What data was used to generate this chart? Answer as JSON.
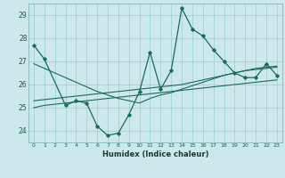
{
  "xlabel": "Humidex (Indice chaleur)",
  "x_values": [
    0,
    1,
    2,
    3,
    4,
    5,
    6,
    7,
    8,
    9,
    10,
    11,
    12,
    13,
    14,
    15,
    16,
    17,
    18,
    19,
    20,
    21,
    22,
    23
  ],
  "y_main": [
    27.7,
    27.1,
    null,
    25.1,
    25.3,
    25.2,
    24.2,
    23.8,
    23.9,
    24.7,
    25.7,
    27.4,
    25.8,
    26.6,
    29.3,
    28.4,
    28.1,
    27.5,
    27.0,
    26.5,
    26.3,
    26.3,
    26.9,
    26.4
  ],
  "y_line1": [
    25.0,
    25.1,
    25.15,
    25.2,
    25.25,
    25.3,
    25.35,
    25.4,
    25.45,
    25.5,
    25.55,
    25.6,
    25.65,
    25.7,
    25.75,
    25.8,
    25.85,
    25.9,
    25.95,
    26.0,
    26.05,
    26.1,
    26.15,
    26.2
  ],
  "y_line2": [
    25.3,
    25.35,
    25.4,
    25.45,
    25.5,
    25.55,
    25.6,
    25.65,
    25.7,
    25.75,
    25.8,
    25.85,
    25.9,
    25.95,
    26.0,
    26.1,
    26.2,
    26.3,
    26.4,
    26.5,
    26.6,
    26.7,
    26.75,
    26.8
  ],
  "y_line3": [
    26.9,
    26.7,
    26.5,
    26.3,
    26.1,
    25.9,
    25.7,
    25.55,
    25.4,
    25.3,
    25.2,
    25.4,
    25.55,
    25.65,
    25.8,
    25.95,
    26.1,
    26.25,
    26.4,
    26.5,
    26.6,
    26.65,
    26.7,
    26.75
  ],
  "line_color": "#1a6b5a",
  "bg_color": "#cce8ec",
  "grid_color": "#99ccd4",
  "ylim": [
    23.5,
    29.5
  ],
  "yticks": [
    24,
    25,
    26,
    27,
    28,
    29
  ],
  "xlim": [
    -0.5,
    23.5
  ]
}
